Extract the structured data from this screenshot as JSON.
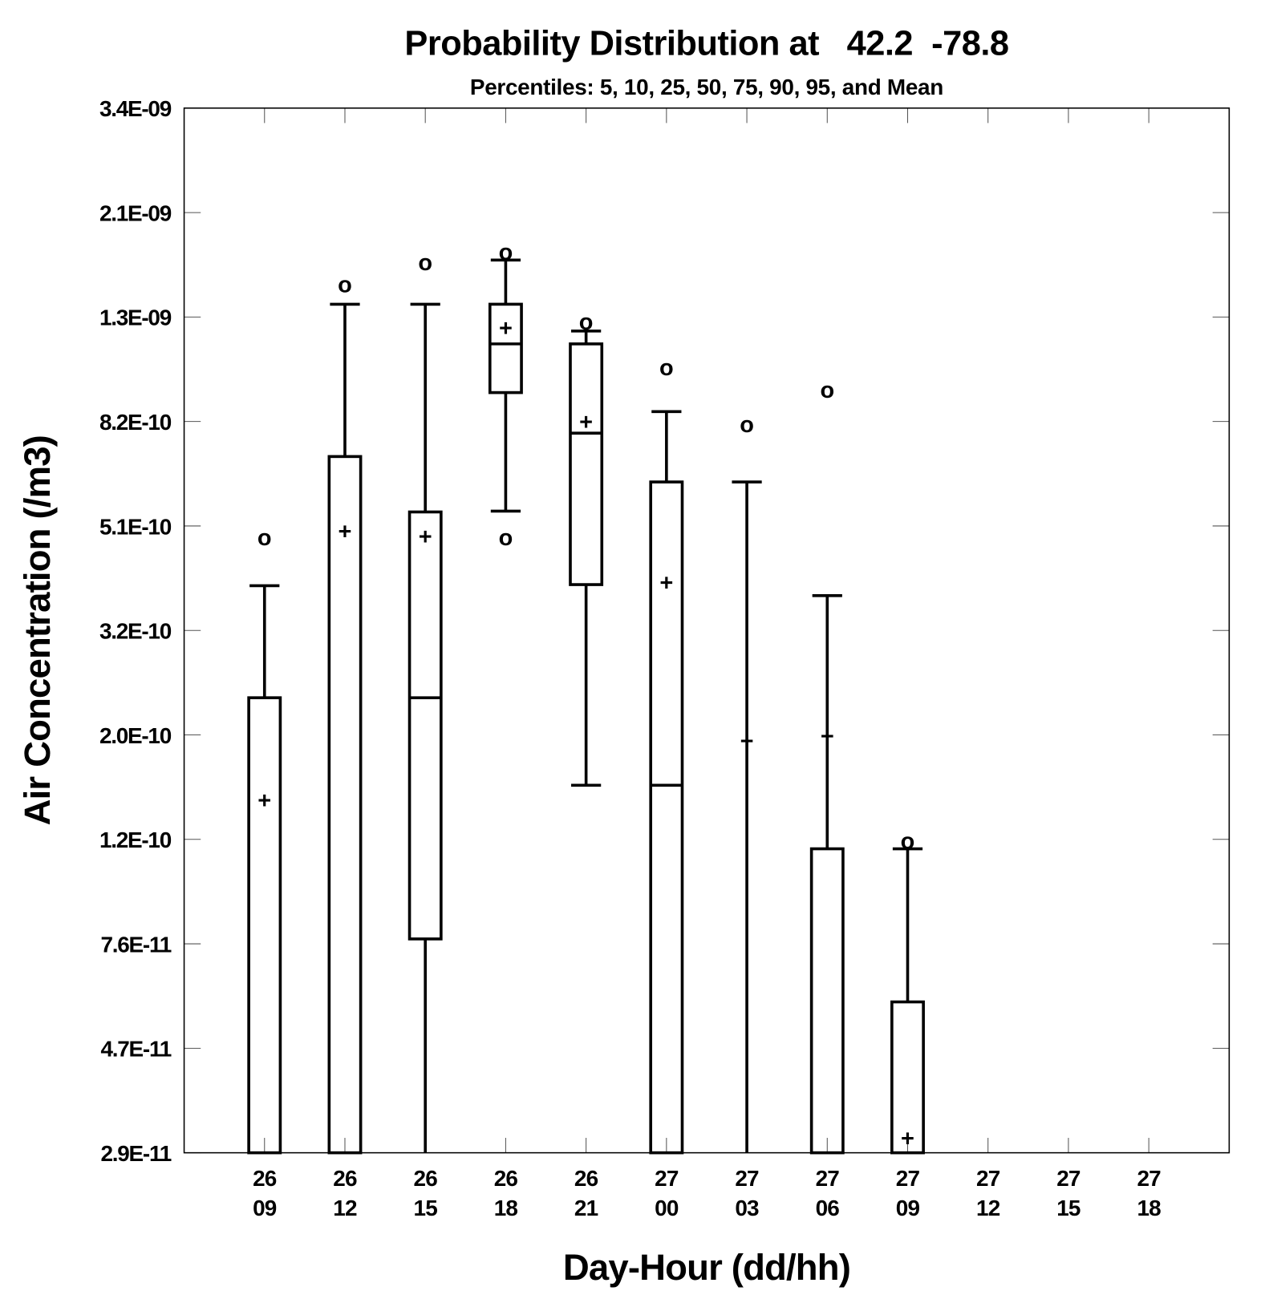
{
  "chart_data": {
    "type": "boxplot",
    "title": "Probability Distribution at   42.2  -78.8",
    "subtitle": "Percentiles: 5, 10, 25, 50, 75, 90, 95, and Mean",
    "xlabel": "Day-Hour (dd/hh)",
    "ylabel": "Air Concentration (/m3)",
    "yscale": "log",
    "ylim": [
      2.9e-11,
      3.4e-09
    ],
    "yticks": [
      "3.4E-09",
      "2.1E-09",
      "1.3E-09",
      "8.2E-10",
      "5.1E-10",
      "3.2E-10",
      "2.0E-10",
      "1.2E-10",
      "7.6E-11",
      "4.7E-11",
      "2.9E-11"
    ],
    "categories": [
      {
        "day": "26",
        "hour": "09"
      },
      {
        "day": "26",
        "hour": "12"
      },
      {
        "day": "26",
        "hour": "15"
      },
      {
        "day": "26",
        "hour": "18"
      },
      {
        "day": "26",
        "hour": "21"
      },
      {
        "day": "27",
        "hour": "00"
      },
      {
        "day": "27",
        "hour": "03"
      },
      {
        "day": "27",
        "hour": "06"
      },
      {
        "day": "27",
        "hour": "09"
      },
      {
        "day": "27",
        "hour": "12"
      },
      {
        "day": "27",
        "hour": "15"
      },
      {
        "day": "27",
        "hour": "18"
      }
    ],
    "legend_markers": {
      "percentile_5_95": "o",
      "mean": "+"
    },
    "series": [
      {
        "p5": null,
        "p10": null,
        "p25": null,
        "p50": null,
        "p75": 2.31e-10,
        "p90": 3.85e-10,
        "p95": 4.79e-10,
        "mean": 1.45e-10
      },
      {
        "p5": null,
        "p10": null,
        "p25": null,
        "p50": null,
        "p75": 6.94e-10,
        "p90": 1.39e-09,
        "p95": 1.52e-09,
        "mean": 4.94e-10
      },
      {
        "p5": null,
        "p10": null,
        "p25": 7.69e-11,
        "p50": 2.31e-10,
        "p75": 5.39e-10,
        "p90": 1.39e-09,
        "p95": 1.68e-09,
        "mean": 4.83e-10
      },
      {
        "p5": 4.79e-10,
        "p10": 5.41e-10,
        "p25": 9.29e-10,
        "p50": 1.16e-09,
        "p75": 1.39e-09,
        "p90": 1.7e-09,
        "p95": 1.76e-09,
        "mean": 1.25e-09
      },
      {
        "p5": null,
        "p10": 1.55e-10,
        "p25": 3.87e-10,
        "p50": 7.72e-10,
        "p75": 1.16e-09,
        "p90": 1.23e-09,
        "p95": 1.28e-09,
        "mean": 8.14e-10
      },
      {
        "p5": null,
        "p10": null,
        "p25": null,
        "p50": 1.55e-10,
        "p75": 6.18e-10,
        "p90": 8.52e-10,
        "p95": 1.04e-09,
        "mean": 3.91e-10
      },
      {
        "p5": null,
        "p10": null,
        "p25": null,
        "p50": null,
        "p75": null,
        "p90": 6.18e-10,
        "p95": 8.02e-10,
        "mean": 1.9e-10
      },
      {
        "p5": null,
        "p10": null,
        "p25": null,
        "p50": null,
        "p75": 1.16e-10,
        "p90": 3.68e-10,
        "p95": 9.39e-10,
        "mean": 1.94e-10
      },
      {
        "p5": null,
        "p10": null,
        "p25": null,
        "p50": null,
        "p75": 5.77e-11,
        "p90": 1.16e-10,
        "p95": 1.2e-10,
        "mean": 3.1e-11
      },
      null,
      null,
      null
    ],
    "grid": false
  }
}
